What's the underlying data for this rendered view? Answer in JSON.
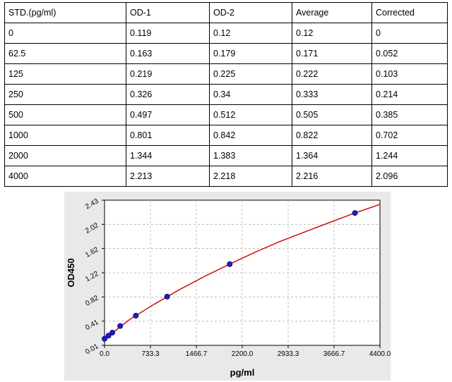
{
  "table": {
    "headers": [
      "STD.(pg/ml)",
      "OD-1",
      "OD-2",
      "Average",
      "Corrected"
    ],
    "rows": [
      [
        "0",
        "0.119",
        "0.12",
        "0.12",
        "0"
      ],
      [
        "62.5",
        "0.163",
        "0.179",
        "0.171",
        "0.052"
      ],
      [
        "125",
        "0.219",
        "0.225",
        "0.222",
        "0.103"
      ],
      [
        "250",
        "0.326",
        "0.34",
        "0.333",
        "0.214"
      ],
      [
        "500",
        "0.497",
        "0.512",
        "0.505",
        "0.385"
      ],
      [
        "1000",
        "0.801",
        "0.842",
        "0.822",
        "0.702"
      ],
      [
        "2000",
        "1.344",
        "1.383",
        "1.364",
        "1.244"
      ],
      [
        "4000",
        "2.213",
        "2.218",
        "2.216",
        "2.096"
      ]
    ]
  },
  "chart_data": {
    "type": "scatter",
    "xlabel": "pg/ml",
    "ylabel": "OD450",
    "xlim": [
      0,
      4400
    ],
    "ylim": [
      0.01,
      2.43
    ],
    "xticks": [
      "0.0",
      "733.3",
      "1466.7",
      "2200.0",
      "2933.3",
      "3666.7",
      "4400.0"
    ],
    "yticks": [
      "0.01",
      "0.41",
      "0.82",
      "1.22",
      "1.62",
      "2.02",
      "2.43"
    ],
    "grid": true,
    "colors": {
      "points": "#1f1fbf",
      "point_edge": "#000080",
      "curve": "#cc1111",
      "grid": "#b0b0b0",
      "panel": "#e9e9e9"
    },
    "series": [
      {
        "points": [
          {
            "x": 0,
            "y": 0.12
          },
          {
            "x": 62.5,
            "y": 0.171
          },
          {
            "x": 125,
            "y": 0.222
          },
          {
            "x": 250,
            "y": 0.333
          },
          {
            "x": 500,
            "y": 0.505
          },
          {
            "x": 1000,
            "y": 0.822
          },
          {
            "x": 2000,
            "y": 1.364
          },
          {
            "x": 4000,
            "y": 2.216
          }
        ],
        "fit_curve": [
          {
            "x": 0,
            "y": 0.115
          },
          {
            "x": 400,
            "y": 0.44
          },
          {
            "x": 800,
            "y": 0.7
          },
          {
            "x": 1200,
            "y": 0.94
          },
          {
            "x": 1600,
            "y": 1.16
          },
          {
            "x": 2000,
            "y": 1.364
          },
          {
            "x": 2400,
            "y": 1.56
          },
          {
            "x": 2800,
            "y": 1.74
          },
          {
            "x": 3200,
            "y": 1.9
          },
          {
            "x": 3600,
            "y": 2.06
          },
          {
            "x": 4000,
            "y": 2.216
          },
          {
            "x": 4400,
            "y": 2.36
          }
        ]
      }
    ]
  }
}
